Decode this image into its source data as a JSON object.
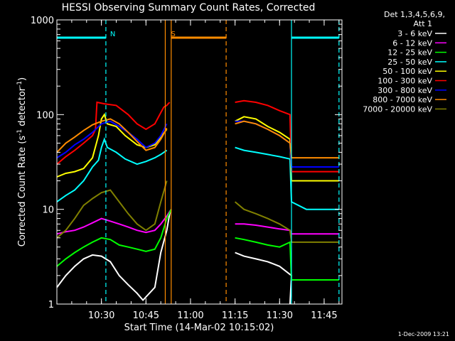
{
  "chart_data": {
    "type": "line",
    "title": "HESSI Observing Summary Count Rates, Corrected",
    "xlabel": "Start Time (14-Mar-02 10:15:02)",
    "ylabel_main": "Corrected Count Rate (s",
    "ylabel_sup1": "-1",
    "ylabel_mid": " detector",
    "ylabel_sup2": "-1",
    "ylabel_end": ")",
    "y_scale": "log",
    "ylim": [
      1,
      1000
    ],
    "xlim_minutes_after_1015": [
      0,
      96
    ],
    "x_ticks": [
      {
        "label": "10:30",
        "minute": 15
      },
      {
        "label": "10:45",
        "minute": 30
      },
      {
        "label": "11:00",
        "minute": 45
      },
      {
        "label": "11:15",
        "minute": 60
      },
      {
        "label": "11:30",
        "minute": 75
      },
      {
        "label": "11:45",
        "minute": 90
      }
    ],
    "y_ticks": [
      {
        "label": "1",
        "value": 1
      },
      {
        "label": "10",
        "value": 10
      },
      {
        "label": "100",
        "value": 100
      },
      {
        "label": "1000",
        "value": 1000
      }
    ],
    "legend_header": [
      "Det 1,3,4,5,6,9,",
      "Att 1"
    ],
    "legend_position": "right",
    "series": [
      {
        "name": "3 - 6 keV",
        "color": "#000000",
        "points": [
          [
            0,
            1.5
          ],
          [
            3,
            2
          ],
          [
            6,
            2.5
          ],
          [
            9,
            3
          ],
          [
            12,
            3.3
          ],
          [
            15,
            3.2
          ],
          [
            18,
            2.8
          ],
          [
            21,
            2
          ],
          [
            24,
            1.6
          ],
          [
            27,
            1.3
          ],
          [
            29,
            1.1
          ],
          [
            33,
            1.5
          ],
          [
            35,
            3.5
          ],
          [
            37,
            6
          ],
          [
            38,
            9
          ],
          [
            38.5,
            10
          ]
        ],
        "points2": [
          [
            60,
            3.5
          ],
          [
            63,
            3.2
          ],
          [
            67,
            3
          ],
          [
            71,
            2.8
          ],
          [
            75,
            2.5
          ],
          [
            79,
            2
          ],
          [
            78.5,
            1
          ]
        ]
      },
      {
        "name": "6 - 12 keV",
        "color": "#ff00ff",
        "points": [
          [
            0,
            5.5
          ],
          [
            3,
            5.8
          ],
          [
            6,
            6
          ],
          [
            9,
            6.5
          ],
          [
            12,
            7.2
          ],
          [
            15,
            8
          ],
          [
            18,
            7.5
          ],
          [
            21,
            7
          ],
          [
            24,
            6.5
          ],
          [
            27,
            6
          ],
          [
            30,
            5.7
          ],
          [
            33,
            6
          ],
          [
            35,
            7
          ],
          [
            37,
            8.5
          ],
          [
            38.5,
            10
          ]
        ],
        "points2": [
          [
            60,
            7
          ],
          [
            63,
            7
          ],
          [
            67,
            6.8
          ],
          [
            71,
            6.5
          ],
          [
            75,
            6.2
          ],
          [
            78.5,
            6
          ],
          [
            79,
            5.5
          ],
          [
            84,
            5.5
          ],
          [
            89,
            5.5
          ],
          [
            95,
            5.5
          ]
        ]
      },
      {
        "name": "12 - 25 keV",
        "color": "#00ff00",
        "points": [
          [
            0,
            2.5
          ],
          [
            3,
            3
          ],
          [
            6,
            3.5
          ],
          [
            9,
            4
          ],
          [
            12,
            4.5
          ],
          [
            15,
            5
          ],
          [
            18,
            4.8
          ],
          [
            21,
            4.2
          ],
          [
            24,
            4
          ],
          [
            27,
            3.8
          ],
          [
            30,
            3.6
          ],
          [
            33,
            3.8
          ],
          [
            35,
            5
          ],
          [
            37,
            8
          ],
          [
            38.5,
            10
          ]
        ],
        "points2": [
          [
            60,
            5
          ],
          [
            63,
            4.8
          ],
          [
            67,
            4.5
          ],
          [
            71,
            4.2
          ],
          [
            75,
            4
          ],
          [
            78.5,
            4.5
          ],
          [
            79,
            1.8
          ],
          [
            84,
            1.8
          ],
          [
            89,
            1.8
          ],
          [
            95,
            1.8
          ]
        ]
      },
      {
        "name": "25 - 50 keV",
        "color": "#00ffff",
        "points": [
          [
            0,
            12
          ],
          [
            3,
            14
          ],
          [
            6,
            16
          ],
          [
            9,
            20
          ],
          [
            12,
            28
          ],
          [
            14,
            33
          ],
          [
            15,
            45
          ],
          [
            16,
            55
          ],
          [
            17,
            45
          ],
          [
            20,
            40
          ],
          [
            23,
            34
          ],
          [
            27,
            30
          ],
          [
            30,
            32
          ],
          [
            33,
            35
          ],
          [
            35,
            38
          ],
          [
            37,
            42
          ]
        ],
        "points2": [
          [
            60,
            45
          ],
          [
            63,
            42
          ],
          [
            67,
            40
          ],
          [
            71,
            38
          ],
          [
            75,
            36
          ],
          [
            78.5,
            34
          ],
          [
            79,
            12
          ],
          [
            84,
            10
          ],
          [
            89,
            10
          ],
          [
            95,
            10
          ]
        ]
      },
      {
        "name": "50 - 100 keV",
        "color": "#ffff00",
        "points": [
          [
            0,
            22
          ],
          [
            3,
            24
          ],
          [
            6,
            25
          ],
          [
            9,
            27
          ],
          [
            12,
            35
          ],
          [
            14,
            60
          ],
          [
            15,
            90
          ],
          [
            16,
            100
          ],
          [
            17,
            80
          ],
          [
            20,
            75
          ],
          [
            23,
            60
          ],
          [
            27,
            48
          ],
          [
            30,
            45
          ],
          [
            33,
            48
          ],
          [
            35,
            58
          ],
          [
            37,
            70
          ]
        ],
        "points2": [
          [
            60,
            85
          ],
          [
            63,
            95
          ],
          [
            67,
            90
          ],
          [
            71,
            75
          ],
          [
            75,
            65
          ],
          [
            78.5,
            55
          ],
          [
            79,
            20
          ],
          [
            84,
            20
          ],
          [
            89,
            20
          ],
          [
            95,
            20
          ]
        ]
      },
      {
        "name": "100 - 300 keV",
        "color": "#ff0000",
        "points": [
          [
            0,
            30
          ],
          [
            3,
            36
          ],
          [
            6,
            42
          ],
          [
            9,
            50
          ],
          [
            12,
            60
          ],
          [
            13,
            70
          ],
          [
            13.5,
            135
          ],
          [
            16,
            130
          ],
          [
            20,
            125
          ],
          [
            24,
            100
          ],
          [
            27,
            80
          ],
          [
            30,
            70
          ],
          [
            33,
            80
          ],
          [
            35,
            105
          ],
          [
            36,
            120
          ],
          [
            37,
            125
          ],
          [
            37.5,
            130
          ],
          [
            38,
            135
          ]
        ],
        "points2": [
          [
            60,
            135
          ],
          [
            63,
            140
          ],
          [
            67,
            135
          ],
          [
            71,
            125
          ],
          [
            75,
            110
          ],
          [
            78.5,
            100
          ],
          [
            79,
            25
          ],
          [
            84,
            25
          ],
          [
            89,
            25
          ],
          [
            95,
            25
          ]
        ]
      },
      {
        "name": "300 - 800 keV",
        "color": "#0000ff",
        "points": [
          [
            0,
            35
          ],
          [
            3,
            40
          ],
          [
            6,
            48
          ],
          [
            9,
            55
          ],
          [
            12,
            65
          ],
          [
            15,
            80
          ],
          [
            18,
            85
          ],
          [
            21,
            75
          ],
          [
            24,
            65
          ],
          [
            27,
            55
          ],
          [
            30,
            45
          ],
          [
            33,
            50
          ],
          [
            35,
            60
          ],
          [
            37,
            80
          ]
        ],
        "points2": [
          [
            60,
            85
          ],
          [
            63,
            85
          ],
          [
            67,
            80
          ],
          [
            71,
            70
          ],
          [
            75,
            60
          ],
          [
            78.5,
            50
          ],
          [
            79,
            28
          ],
          [
            84,
            28
          ],
          [
            89,
            28
          ],
          [
            95,
            28
          ]
        ]
      },
      {
        "name": "800 - 7000 keV",
        "color": "#ff8c00",
        "points": [
          [
            0,
            40
          ],
          [
            3,
            50
          ],
          [
            6,
            58
          ],
          [
            9,
            68
          ],
          [
            12,
            78
          ],
          [
            15,
            85
          ],
          [
            18,
            90
          ],
          [
            21,
            80
          ],
          [
            24,
            65
          ],
          [
            27,
            52
          ],
          [
            30,
            42
          ],
          [
            33,
            45
          ],
          [
            35,
            55
          ],
          [
            37,
            72
          ]
        ],
        "points2": [
          [
            60,
            80
          ],
          [
            63,
            85
          ],
          [
            67,
            80
          ],
          [
            71,
            70
          ],
          [
            75,
            60
          ],
          [
            78.5,
            50
          ],
          [
            79,
            35
          ],
          [
            84,
            35
          ],
          [
            89,
            35
          ],
          [
            95,
            35
          ]
        ]
      },
      {
        "name": "7000 - 20000 keV",
        "color": "#808000",
        "points": [
          [
            0,
            5
          ],
          [
            3,
            6
          ],
          [
            6,
            8
          ],
          [
            9,
            11
          ],
          [
            12,
            13
          ],
          [
            15,
            15
          ],
          [
            18,
            16
          ],
          [
            21,
            12
          ],
          [
            24,
            9
          ],
          [
            27,
            7
          ],
          [
            30,
            6
          ],
          [
            33,
            7
          ],
          [
            35,
            12
          ],
          [
            37,
            20
          ]
        ],
        "points2": [
          [
            60,
            12
          ],
          [
            63,
            10
          ],
          [
            67,
            9
          ],
          [
            71,
            8
          ],
          [
            75,
            7
          ],
          [
            78.5,
            6
          ],
          [
            79,
            4.5
          ],
          [
            84,
            4.5
          ],
          [
            89,
            4.5
          ],
          [
            95,
            4.5
          ]
        ]
      }
    ],
    "annotations": [
      {
        "label": "N",
        "color": "#00ffff"
      },
      {
        "label": "S",
        "color": "#ff8c00"
      }
    ],
    "segments": [
      {
        "color": "#00ffff",
        "y": 650,
        "x0": 0,
        "x1": 16.5
      },
      {
        "color": "#00ffff",
        "y": 650,
        "x0": 79,
        "x1": 95
      },
      {
        "color": "#ff8c00",
        "y": 650,
        "x0": 38.5,
        "x1": 57
      }
    ],
    "vlines": [
      {
        "color": "#00ffff",
        "x": 16.5,
        "style": "dashed"
      },
      {
        "color": "#00ffff",
        "x": 79,
        "style": "solid"
      },
      {
        "color": "#00ffff",
        "x": 95,
        "style": "dashed"
      },
      {
        "color": "#ff8c00",
        "x": 36.5,
        "style": "solid"
      },
      {
        "color": "#ff8c00",
        "x": 38.5,
        "style": "solid"
      },
      {
        "color": "#ff8c00",
        "x": 57,
        "style": "dashed"
      }
    ]
  },
  "footer_timestamp": "1-Dec-2009 13:21"
}
